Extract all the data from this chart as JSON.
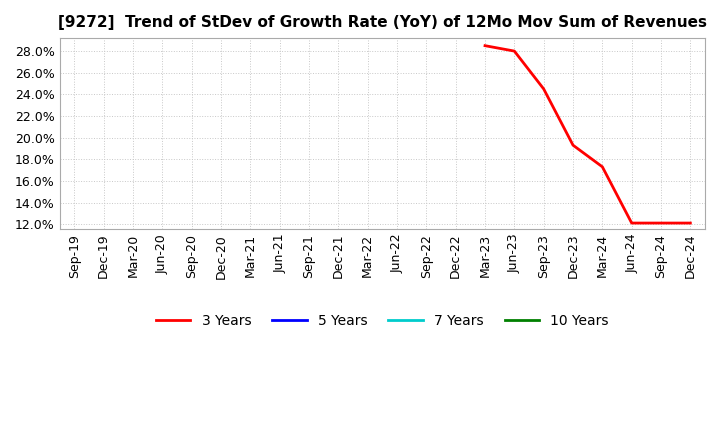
{
  "title": "[9272]  Trend of StDev of Growth Rate (YoY) of 12Mo Mov Sum of Revenues",
  "ylim_low": 0.1155,
  "ylim_high": 0.292,
  "yticks": [
    0.12,
    0.14,
    0.16,
    0.18,
    0.2,
    0.22,
    0.24,
    0.26,
    0.28
  ],
  "x_labels": [
    "Sep-19",
    "Dec-19",
    "Mar-20",
    "Jun-20",
    "Sep-20",
    "Dec-20",
    "Mar-21",
    "Jun-21",
    "Sep-21",
    "Dec-21",
    "Mar-22",
    "Jun-22",
    "Sep-22",
    "Dec-22",
    "Mar-23",
    "Jun-23",
    "Sep-23",
    "Dec-23",
    "Mar-24",
    "Jun-24",
    "Sep-24",
    "Dec-24"
  ],
  "series_3y_x": [
    14,
    15,
    16,
    17,
    18,
    19,
    20,
    21
  ],
  "series_3y_y": [
    0.285,
    0.28,
    0.245,
    0.193,
    0.173,
    0.121,
    0.121,
    0.121
  ],
  "legend_labels": [
    "3 Years",
    "5 Years",
    "7 Years",
    "10 Years"
  ],
  "legend_colors": [
    "#ff0000",
    "#0000ff",
    "#00cccc",
    "#008000"
  ],
  "background_color": "#ffffff",
  "grid_color": "#c8c8c8",
  "title_fontsize": 11,
  "tick_fontsize": 9,
  "legend_fontsize": 10
}
